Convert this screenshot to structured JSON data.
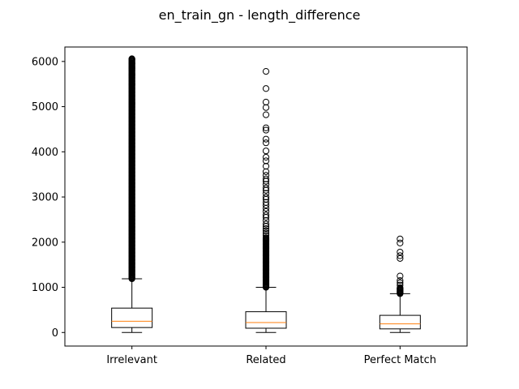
{
  "chart_data": {
    "type": "box",
    "title": "en_train_gn - length_difference",
    "xlabel": "",
    "ylabel": "",
    "ylim": [
      -300,
      6320
    ],
    "yticks": [
      0,
      1000,
      2000,
      3000,
      4000,
      5000,
      6000
    ],
    "categories": [
      "Irrelevant",
      "Related",
      "Perfect Match"
    ],
    "boxes": [
      {
        "label": "Irrelevant",
        "whisker_low": 0,
        "q1": 110,
        "median": 250,
        "q3": 540,
        "whisker_high": 1190,
        "outlier_range": [
          1190,
          6060
        ],
        "outliers": [
          6060,
          5950,
          5850,
          5700,
          5500
        ]
      },
      {
        "label": "Related",
        "whisker_low": 0,
        "q1": 95,
        "median": 220,
        "q3": 460,
        "whisker_high": 1000,
        "outlier_range": [
          1000,
          2100
        ],
        "outliers": [
          5780,
          5400,
          5100,
          4980,
          4820,
          4530,
          4480,
          4280,
          4200,
          4020,
          3880,
          3800,
          3680,
          3560,
          3480,
          3400,
          3350,
          3280,
          3200,
          3150,
          3080,
          3000,
          2950,
          2880,
          2820,
          2750,
          2680,
          2600,
          2550,
          2480,
          2400,
          2350,
          2300,
          2250,
          2200,
          2150
        ]
      },
      {
        "label": "Perfect Match",
        "whisker_low": 0,
        "q1": 80,
        "median": 190,
        "q3": 380,
        "whisker_high": 860,
        "outlier_range": [
          860,
          1000
        ],
        "outliers": [
          2070,
          1980,
          1780,
          1700,
          1640,
          1250,
          1150,
          1100,
          1050
        ]
      }
    ],
    "colors": {
      "box": "#000000",
      "median": "#ff7f0e",
      "outlier": "#000000"
    }
  }
}
